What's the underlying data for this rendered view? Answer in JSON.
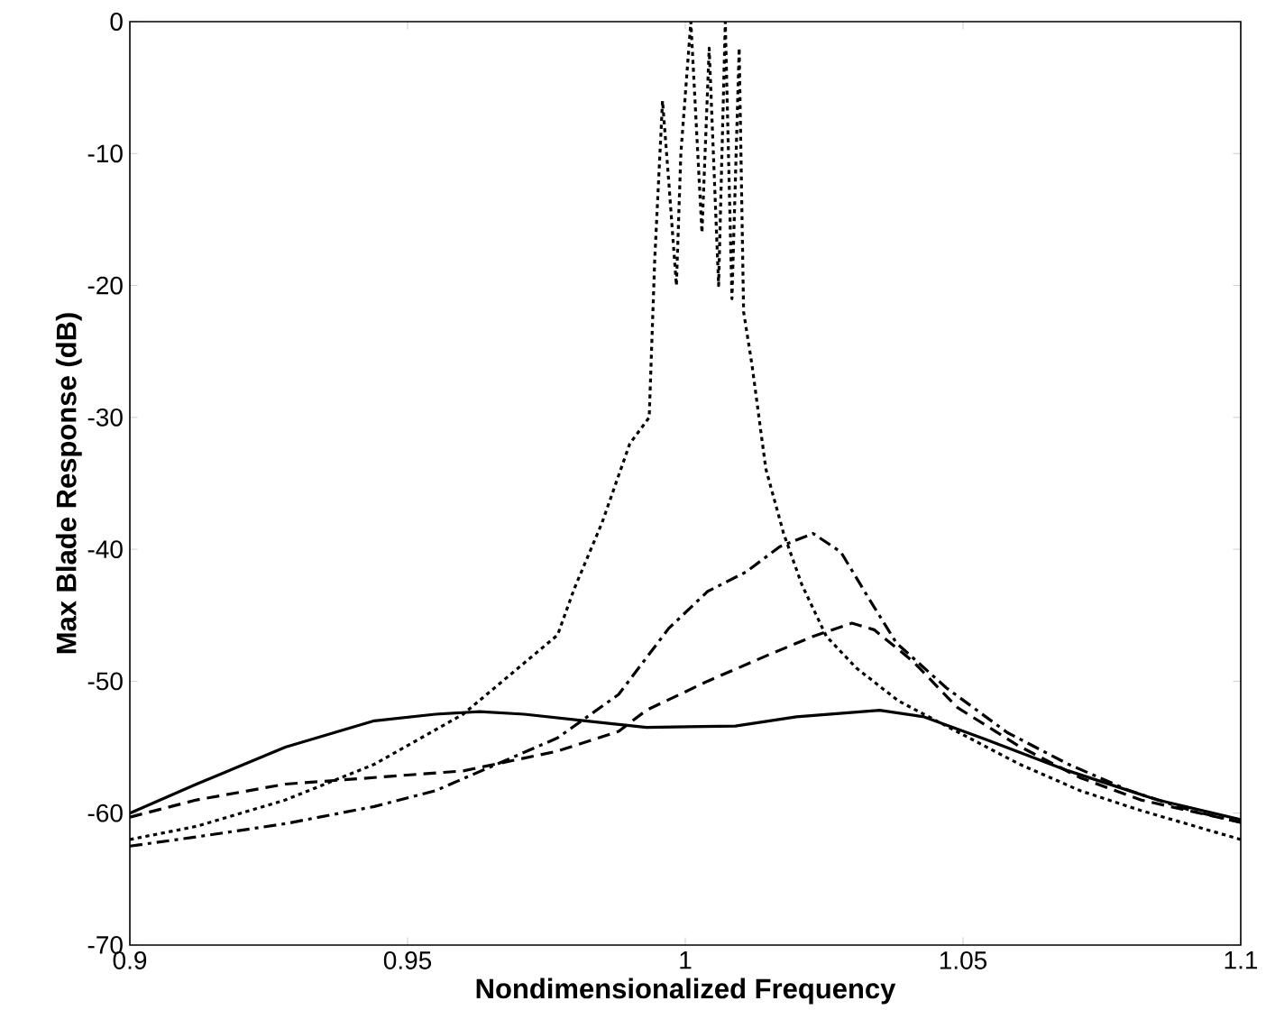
{
  "chart_data": {
    "type": "line",
    "xlabel": "Nondimensionalized Frequency",
    "ylabel": "Max Blade Response (dB)",
    "xlim": [
      0.9,
      1.1
    ],
    "ylim": [
      -70,
      0
    ],
    "xticks": [
      0.9,
      0.95,
      1,
      1.05,
      1.1
    ],
    "yticks": [
      -70,
      -60,
      -50,
      -40,
      -30,
      -20,
      -10,
      0
    ],
    "grid": false,
    "series": [
      {
        "color": "#000000",
        "line_style": "solid",
        "x": [
          0.9,
          0.912,
          0.928,
          0.944,
          0.955,
          0.963,
          0.971,
          0.982,
          0.993,
          1.009,
          1.02,
          1.035,
          1.043,
          1.054,
          1.069,
          1.085,
          1.1
        ],
        "values": [
          -60,
          -57.8,
          -55,
          -53,
          -52.5,
          -52.3,
          -52.5,
          -53,
          -53.5,
          -53.4,
          -52.7,
          -52.2,
          -52.7,
          -54.4,
          -56.8,
          -59,
          -60.5
        ]
      },
      {
        "color": "#000000",
        "line_style": "dashed",
        "x": [
          0.9,
          0.912,
          0.928,
          0.944,
          0.96,
          0.977,
          0.988,
          0.993,
          1.004,
          1.015,
          1.023,
          1.03,
          1.034,
          1.041,
          1.049,
          1.06,
          1.071,
          1.082,
          1.1
        ],
        "values": [
          -60.3,
          -59,
          -57.8,
          -57.3,
          -56.8,
          -55.3,
          -53.8,
          -52.2,
          -50,
          -48,
          -46.6,
          -45.6,
          -46.1,
          -48.5,
          -52,
          -54.9,
          -57.3,
          -59,
          -60.7
        ]
      },
      {
        "color": "#000000",
        "line_style": "dashdot",
        "x": [
          0.9,
          0.912,
          0.928,
          0.944,
          0.955,
          0.966,
          0.977,
          0.988,
          0.997,
          1.004,
          1.011,
          1.017,
          1.023,
          1.028,
          1.033,
          1.038,
          1.047,
          1.058,
          1.069,
          1.08,
          1.091,
          1.1
        ],
        "values": [
          -62.5,
          -61.8,
          -60.8,
          -59.5,
          -58.3,
          -56.3,
          -54.3,
          -51,
          -46,
          -43.2,
          -41.7,
          -39.8,
          -38.8,
          -40.2,
          -43.7,
          -47.1,
          -50.5,
          -53.9,
          -56.3,
          -58.3,
          -59.8,
          -60.7
        ]
      },
      {
        "color": "#000000",
        "line_style": "dotted",
        "x": [
          0.9,
          0.912,
          0.928,
          0.944,
          0.96,
          0.977,
          0.98,
          0.985,
          0.99,
          0.9935,
          0.9945,
          0.9959,
          0.997,
          0.9984,
          0.9992,
          1.001,
          1.003,
          1.0043,
          1.006,
          1.0072,
          1.0084,
          1.0097,
          1.0105,
          1.012,
          1.0145,
          1.0177,
          1.021,
          1.0254,
          1.0308,
          1.0384,
          1.0493,
          1.0602,
          1.0711,
          1.082,
          1.1
        ],
        "values": [
          -62,
          -61,
          -59,
          -56.3,
          -52.5,
          -46.5,
          -43,
          -38,
          -32,
          -30,
          -18,
          -6,
          -12,
          -20,
          -10,
          0,
          -16,
          -2,
          -20,
          0,
          -21,
          -2,
          -22,
          -26,
          -33.9,
          -38.8,
          -42.7,
          -46.6,
          -49,
          -51.5,
          -53.9,
          -56.3,
          -58.3,
          -59.8,
          -62
        ]
      }
    ]
  }
}
